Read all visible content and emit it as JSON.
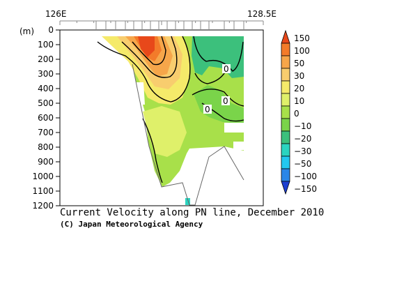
{
  "chart_data": {
    "type": "heatmap",
    "title": "Current Velocity along PN line, December 2010",
    "credit": "(C) Japan Meteorological Agency",
    "x_axis": {
      "tick_labels": [
        "126E",
        "128.5E"
      ],
      "range": [
        126,
        128.5
      ],
      "position": "top"
    },
    "y_axis": {
      "unit_label": "(m)",
      "tick_labels": [
        "0",
        "100",
        "200",
        "300",
        "400",
        "500",
        "600",
        "700",
        "800",
        "900",
        "1000",
        "1100",
        "1200"
      ],
      "range": [
        0,
        1200
      ],
      "inverted": true
    },
    "colorbar": {
      "levels": [
        "150",
        "100",
        "50",
        "30",
        "20",
        "10",
        "0",
        "-10",
        "-20",
        "-30",
        "-50",
        "-100",
        "-150"
      ],
      "colors": [
        "#e8481a",
        "#f37b2a",
        "#f6a64a",
        "#f8cd6e",
        "#f5ea6a",
        "#dff06a",
        "#a8e04a",
        "#7ad44a",
        "#3cc07c",
        "#2bd4c0",
        "#22c8f0",
        "#2a86e8",
        "#1c3fd0"
      ]
    },
    "contour_labels": [
      "0",
      "0",
      "0"
    ],
    "grid": false
  }
}
